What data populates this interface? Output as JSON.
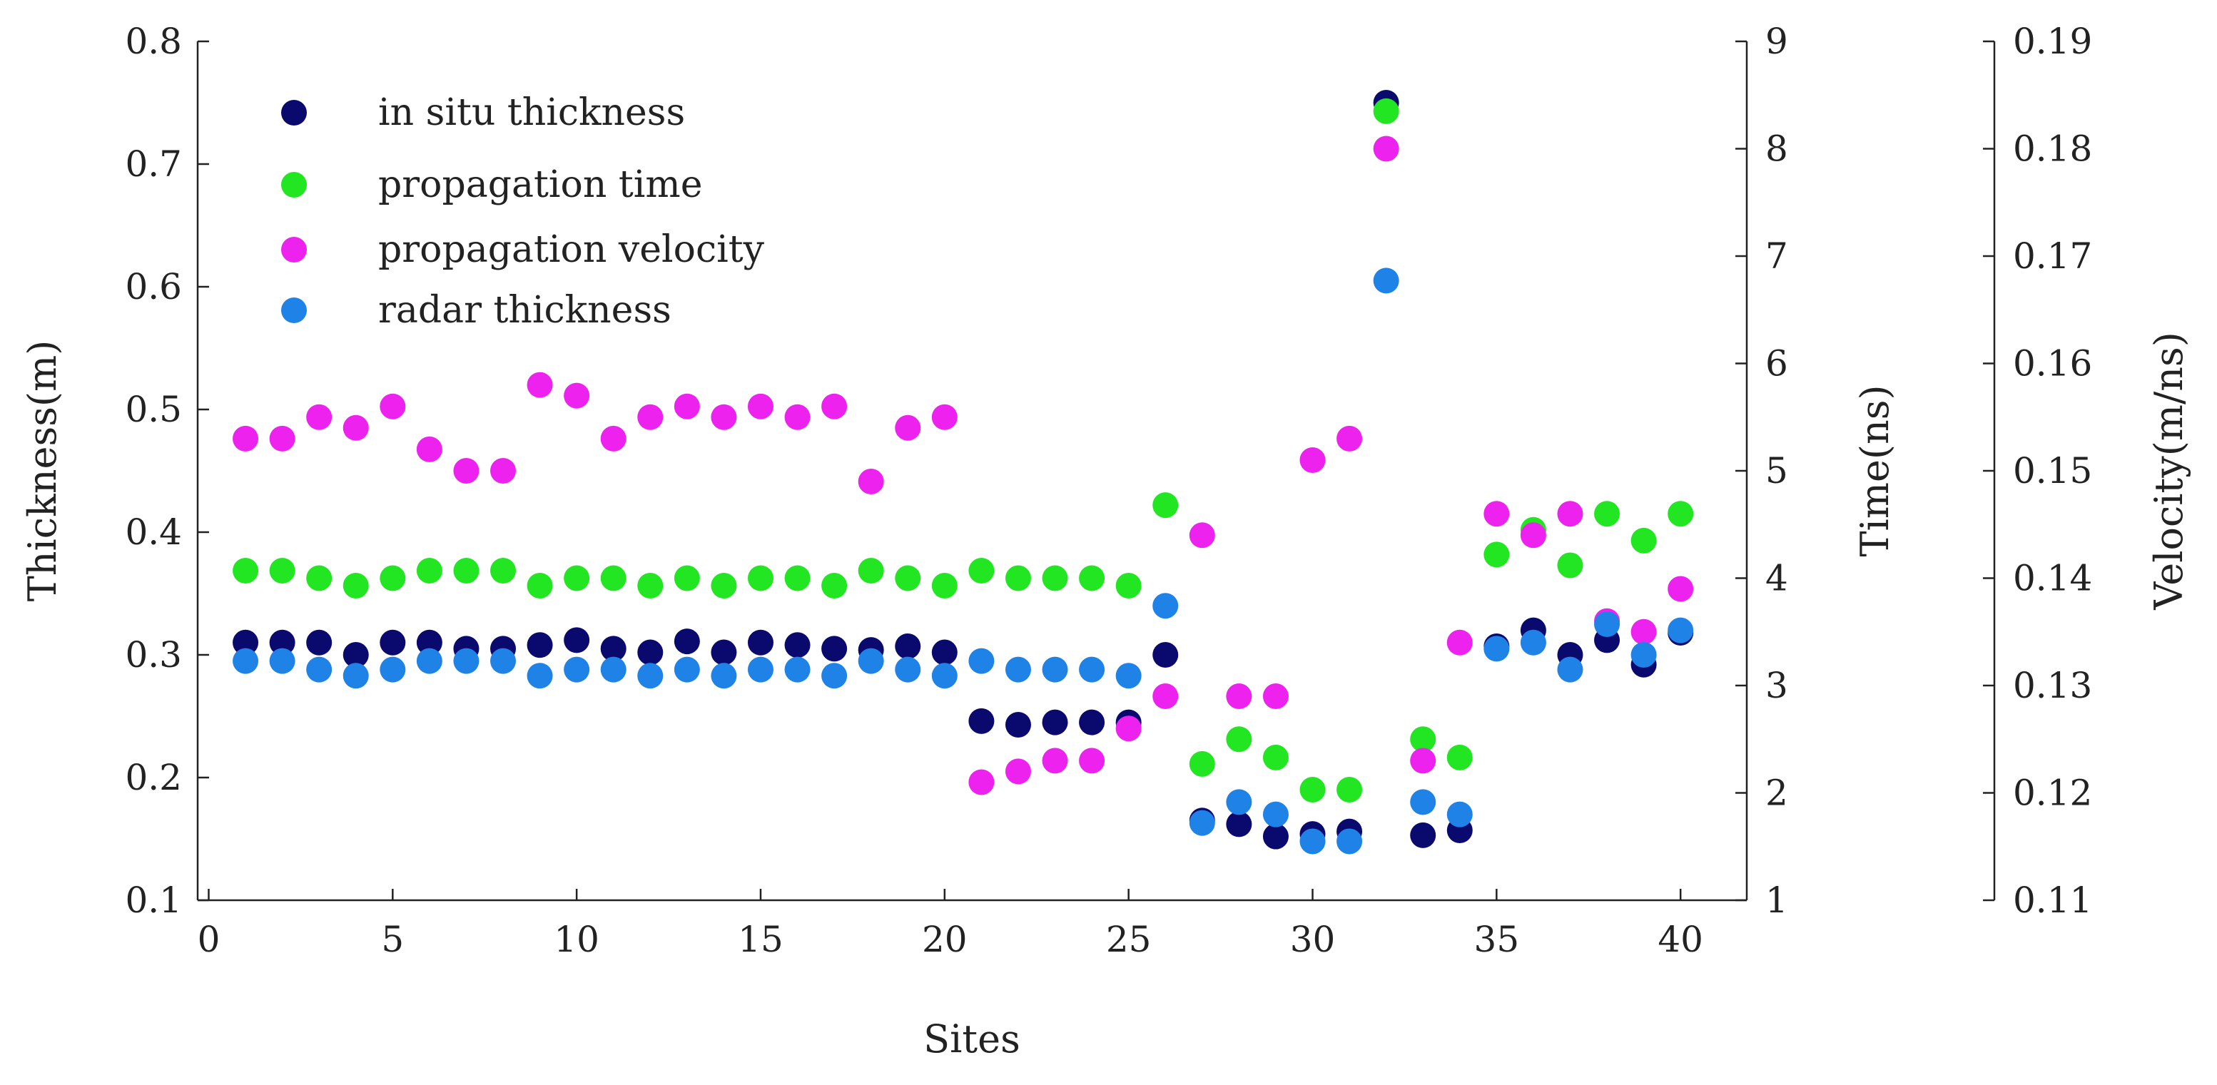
{
  "chart_data": {
    "type": "scatter",
    "title": "",
    "xlabel": "Sites",
    "x_ticks": [
      "0",
      "5",
      "10",
      "15",
      "20",
      "25",
      "30",
      "35",
      "40"
    ],
    "xlim": [
      -0.3,
      41.8
    ],
    "y_axes": {
      "thickness": {
        "label": "Thickness(m)",
        "range": [
          0.1,
          0.8
        ],
        "ticks": [
          "0.1",
          "0.2",
          "0.3",
          "0.4",
          "0.5",
          "0.6",
          "0.7",
          "0.8"
        ]
      },
      "time": {
        "label": "Time(ns)",
        "range": [
          1,
          9
        ],
        "ticks": [
          "1",
          "2",
          "3",
          "4",
          "5",
          "6",
          "7",
          "8",
          "9"
        ]
      },
      "velocity": {
        "label": "Velocity(m/ns)",
        "range": [
          0.11,
          0.19
        ],
        "ticks": [
          "0.11",
          "0.12",
          "0.13",
          "0.14",
          "0.15",
          "0.16",
          "0.17",
          "0.18",
          "0.19"
        ]
      }
    },
    "legend_position": "top-left",
    "series": [
      {
        "name": "in situ thickness",
        "axis": "thickness",
        "color": "#0a0a6e",
        "x": [
          1,
          2,
          3,
          4,
          5,
          6,
          7,
          8,
          9,
          10,
          11,
          12,
          13,
          14,
          15,
          16,
          17,
          18,
          19,
          20,
          21,
          22,
          23,
          24,
          25,
          26,
          27,
          28,
          29,
          30,
          31,
          32,
          33,
          34,
          35,
          36,
          37,
          38,
          39,
          40
        ],
        "values": [
          0.31,
          0.31,
          0.31,
          0.3,
          0.31,
          0.31,
          0.305,
          0.305,
          0.308,
          0.312,
          0.305,
          0.302,
          0.311,
          0.302,
          0.31,
          0.308,
          0.305,
          0.304,
          0.307,
          0.302,
          0.246,
          0.243,
          0.245,
          0.245,
          0.245,
          0.3,
          0.165,
          0.162,
          0.152,
          0.154,
          0.156,
          0.75,
          0.153,
          0.157,
          0.307,
          0.32,
          0.3,
          0.312,
          0.292,
          0.318
        ]
      },
      {
        "name": "propagation time",
        "axis": "time",
        "color": "#22e622",
        "x": [
          1,
          2,
          3,
          4,
          5,
          6,
          7,
          8,
          9,
          10,
          11,
          12,
          13,
          14,
          15,
          16,
          17,
          18,
          19,
          20,
          21,
          22,
          23,
          24,
          25,
          26,
          27,
          28,
          29,
          30,
          31,
          32,
          33,
          34,
          35,
          36,
          37,
          38,
          39,
          40
        ],
        "values": [
          4.07,
          4.07,
          4.0,
          3.93,
          4.0,
          4.07,
          4.07,
          4.07,
          3.93,
          4.0,
          4.0,
          3.93,
          4.0,
          3.93,
          4.0,
          4.0,
          3.93,
          4.07,
          4.0,
          3.93,
          4.07,
          4.0,
          4.0,
          4.0,
          3.93,
          4.68,
          2.27,
          2.5,
          2.33,
          2.03,
          2.03,
          8.35,
          2.5,
          2.33,
          4.22,
          4.45,
          4.12,
          4.6,
          4.35,
          4.6
        ]
      },
      {
        "name": "propagation velocity",
        "axis": "velocity",
        "color": "#ee22ee",
        "x": [
          1,
          2,
          3,
          4,
          5,
          6,
          7,
          8,
          9,
          10,
          11,
          12,
          13,
          14,
          15,
          16,
          17,
          18,
          19,
          20,
          21,
          22,
          23,
          24,
          25,
          26,
          27,
          28,
          29,
          30,
          31,
          32,
          33,
          34,
          35,
          36,
          37,
          38,
          39,
          40
        ],
        "values": [
          0.153,
          0.153,
          0.155,
          0.154,
          0.156,
          0.152,
          0.15,
          0.15,
          0.158,
          0.157,
          0.153,
          0.155,
          0.156,
          0.155,
          0.156,
          0.155,
          0.156,
          0.149,
          0.154,
          0.155,
          0.121,
          0.122,
          0.123,
          0.123,
          0.126,
          0.129,
          0.144,
          0.129,
          0.129,
          0.151,
          0.153,
          0.18,
          0.123,
          0.134,
          0.146,
          0.144,
          0.146,
          0.136,
          0.135,
          0.139
        ]
      },
      {
        "name": "radar thickness",
        "axis": "thickness",
        "color": "#1e82e6",
        "x": [
          1,
          2,
          3,
          4,
          5,
          6,
          7,
          8,
          9,
          10,
          11,
          12,
          13,
          14,
          15,
          16,
          17,
          18,
          19,
          20,
          21,
          22,
          23,
          24,
          25,
          26,
          27,
          28,
          29,
          30,
          31,
          32,
          33,
          34,
          35,
          36,
          37,
          38,
          39,
          40
        ],
        "values": [
          0.295,
          0.295,
          0.288,
          0.283,
          0.288,
          0.295,
          0.295,
          0.295,
          0.283,
          0.288,
          0.288,
          0.283,
          0.288,
          0.283,
          0.288,
          0.288,
          0.283,
          0.295,
          0.288,
          0.283,
          0.295,
          0.288,
          0.288,
          0.288,
          0.283,
          0.34,
          0.163,
          0.18,
          0.17,
          0.148,
          0.148,
          0.605,
          0.18,
          0.17,
          0.305,
          0.31,
          0.288,
          0.325,
          0.3,
          0.32
        ]
      }
    ]
  }
}
